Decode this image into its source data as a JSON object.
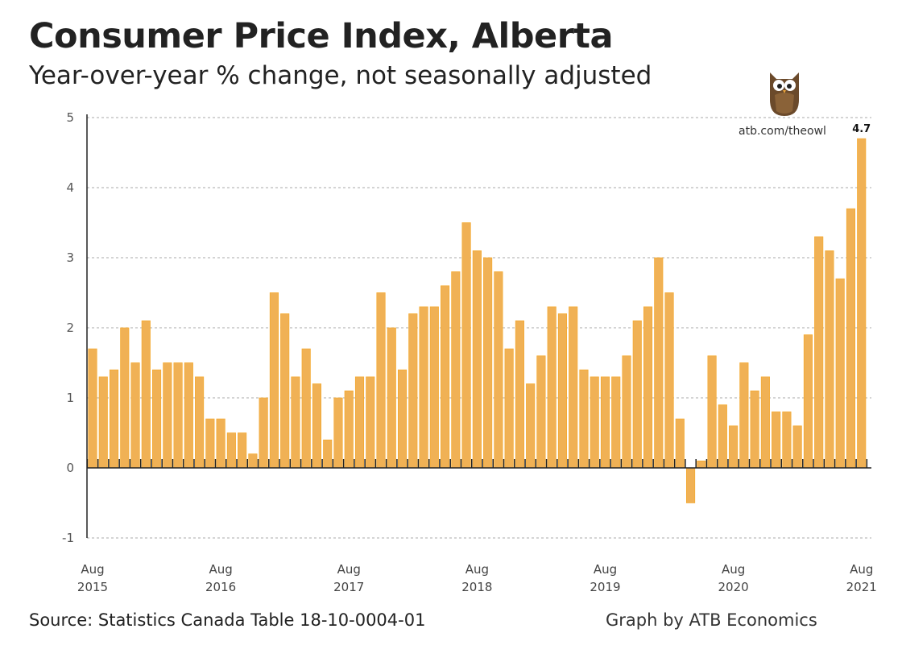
{
  "header": {
    "title": "Consumer Price Index, Alberta",
    "subtitle": "Year-over-year % change, not seasonally adjusted"
  },
  "footer": {
    "source": "Source: Statistics Canada Table 18-10-0004-01",
    "credit": "Graph by ATB Economics"
  },
  "branding": {
    "url": "atb.com/theowl",
    "logo": "owl-logo"
  },
  "colors": {
    "bar": "#F0B155",
    "bar_edge": "#F5A623"
  },
  "chart_data": {
    "type": "bar",
    "title": "Consumer Price Index, Alberta",
    "subtitle": "Year-over-year % change, not seasonally adjusted",
    "ylim": [
      -1,
      5
    ],
    "yticks": [
      "-1",
      "0",
      "1",
      "2",
      "3",
      "4",
      "5"
    ],
    "grid": true,
    "x_start": "Aug 2015",
    "x_end": "Aug 2021",
    "xtick_labels": [
      [
        "Aug",
        "2015"
      ],
      [
        "Aug",
        "2016"
      ],
      [
        "Aug",
        "2017"
      ],
      [
        "Aug",
        "2018"
      ],
      [
        "Aug",
        "2019"
      ],
      [
        "Aug",
        "2020"
      ],
      [
        "Aug",
        "2021"
      ]
    ],
    "values": [
      1.7,
      1.3,
      1.4,
      2.0,
      1.5,
      2.1,
      1.4,
      1.5,
      1.5,
      1.5,
      1.3,
      0.7,
      0.7,
      0.5,
      0.5,
      0.2,
      1.0,
      2.5,
      2.2,
      1.3,
      1.7,
      1.2,
      0.4,
      1.0,
      1.1,
      1.3,
      1.3,
      2.5,
      2.0,
      1.4,
      2.2,
      2.3,
      2.3,
      2.6,
      2.8,
      3.5,
      3.1,
      3.0,
      2.8,
      1.7,
      2.1,
      1.2,
      1.6,
      2.3,
      2.2,
      2.3,
      1.4,
      1.3,
      1.3,
      1.3,
      1.6,
      2.1,
      2.3,
      3.0,
      2.5,
      0.7,
      -0.5,
      0.1,
      1.6,
      0.9,
      0.6,
      1.5,
      1.1,
      1.3,
      0.8,
      0.8,
      0.6,
      1.9,
      3.3,
      3.1,
      2.7,
      3.7,
      4.7
    ],
    "annotation": "4.7"
  }
}
